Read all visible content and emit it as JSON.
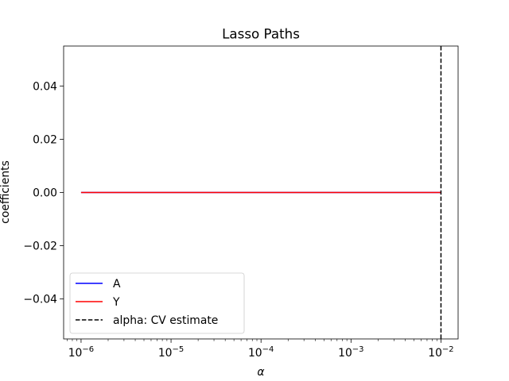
{
  "chart_data": {
    "type": "line",
    "title": "Lasso Paths",
    "xlabel": "α",
    "ylabel": "coefficients",
    "xscale": "log",
    "xlim": [
      6.4e-07,
      0.0155
    ],
    "ylim": [
      -0.055,
      0.055
    ],
    "x_ticks": [
      {
        "value": 1e-06,
        "label_base": "10",
        "label_exp": "−6"
      },
      {
        "value": 1e-05,
        "label_base": "10",
        "label_exp": "−5"
      },
      {
        "value": 0.0001,
        "label_base": "10",
        "label_exp": "−4"
      },
      {
        "value": 0.001,
        "label_base": "10",
        "label_exp": "−3"
      },
      {
        "value": 0.01,
        "label_base": "10",
        "label_exp": "−2"
      }
    ],
    "y_ticks": [
      {
        "value": 0.04,
        "label": "0.04"
      },
      {
        "value": 0.02,
        "label": "0.02"
      },
      {
        "value": 0.0,
        "label": "0.00"
      },
      {
        "value": -0.02,
        "label": "−0.02"
      },
      {
        "value": -0.04,
        "label": "−0.04"
      }
    ],
    "grid": false,
    "legend_position": "lower-left",
    "series": [
      {
        "name": "A",
        "color": "#0000ff",
        "style": "solid",
        "x": [
          1e-06,
          0.01
        ],
        "y": [
          0,
          0
        ]
      },
      {
        "name": "Y",
        "color": "#ff0000",
        "style": "solid",
        "x": [
          1e-06,
          0.01
        ],
        "y": [
          0,
          0
        ]
      }
    ],
    "vlines": [
      {
        "name": "alpha: CV estimate",
        "x": 0.01,
        "color": "#000000",
        "style": "dashed"
      }
    ]
  }
}
